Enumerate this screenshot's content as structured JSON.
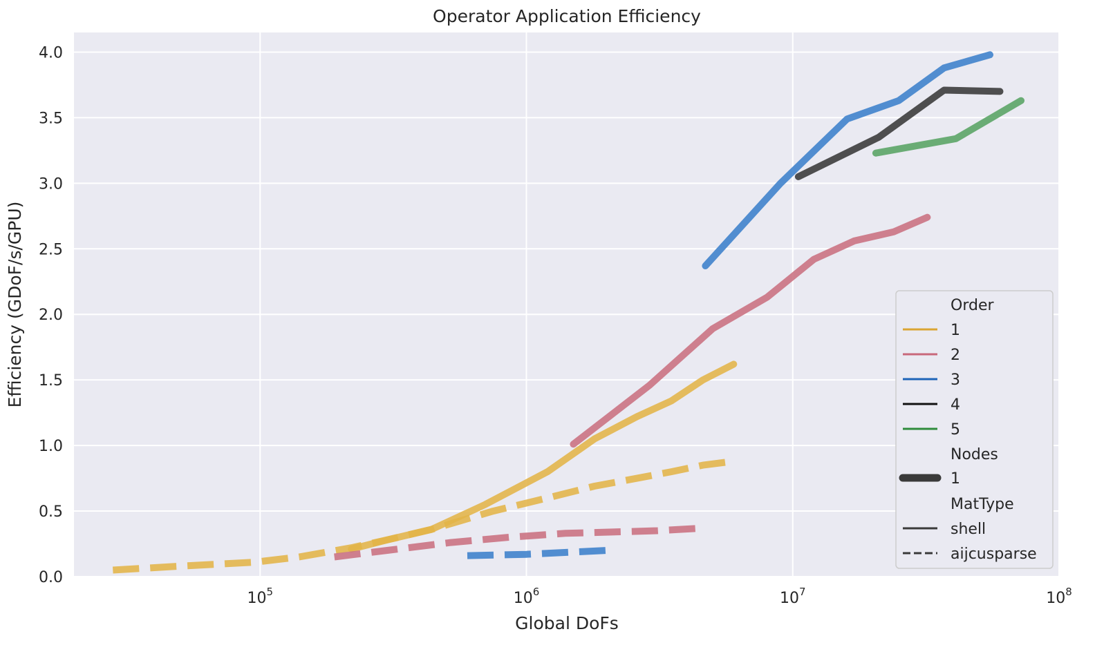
{
  "chart_data": {
    "type": "line",
    "title": "Operator Application Efficiency",
    "xlabel": "Global DoFs",
    "ylabel": "Efficiency (GDoF/s/GPU)",
    "xscale": "log",
    "xlim": [
      20000,
      100000000
    ],
    "ylim": [
      0,
      4.15
    ],
    "xticks": [
      {
        "value": 100000,
        "base": "10",
        "exp": "5"
      },
      {
        "value": 1000000,
        "base": "10",
        "exp": "6"
      },
      {
        "value": 10000000,
        "base": "10",
        "exp": "7"
      },
      {
        "value": 100000000,
        "base": "10",
        "exp": "8"
      }
    ],
    "yticks": [
      {
        "value": 0.0,
        "label": "0.0"
      },
      {
        "value": 0.5,
        "label": "0.5"
      },
      {
        "value": 1.0,
        "label": "1.0"
      },
      {
        "value": 1.5,
        "label": "1.5"
      },
      {
        "value": 2.0,
        "label": "2.0"
      },
      {
        "value": 2.5,
        "label": "2.5"
      },
      {
        "value": 3.0,
        "label": "3.0"
      },
      {
        "value": 3.5,
        "label": "3.5"
      },
      {
        "value": 4.0,
        "label": "4.0"
      }
    ],
    "grid": true,
    "background": "#eaeaf2",
    "legend_placement": "lower-right",
    "series": [
      {
        "order": "1",
        "mattype": "aijcusparse",
        "color": "#e3b448",
        "x": [
          28000,
          50000,
          95000,
          140000,
          220000,
          300000,
          440000,
          750000,
          1200000,
          1800000,
          2600000,
          3500000,
          4600000,
          6000000
        ],
        "y": [
          0.05,
          0.08,
          0.11,
          0.15,
          0.22,
          0.28,
          0.36,
          0.5,
          0.6,
          0.69,
          0.75,
          0.8,
          0.85,
          0.88
        ]
      },
      {
        "order": "1",
        "mattype": "shell",
        "color": "#e3b448",
        "x": [
          220000,
          300000,
          440000,
          700000,
          1200000,
          1800000,
          2600000,
          3500000,
          4600000,
          6000000
        ],
        "y": [
          0.21,
          0.28,
          0.36,
          0.55,
          0.8,
          1.05,
          1.22,
          1.34,
          1.5,
          1.62
        ]
      },
      {
        "order": "2",
        "mattype": "aijcusparse",
        "color": "#c97080",
        "x": [
          190000,
          300000,
          520000,
          860000,
          1400000,
          2100000,
          3100000,
          4600000
        ],
        "y": [
          0.15,
          0.2,
          0.26,
          0.3,
          0.33,
          0.34,
          0.35,
          0.37
        ]
      },
      {
        "order": "2",
        "mattype": "shell",
        "color": "#c97080",
        "x": [
          1500000,
          2900000,
          5000000,
          8000000,
          12000000,
          17000000,
          24000000,
          32000000
        ],
        "y": [
          1.01,
          1.46,
          1.89,
          2.13,
          2.42,
          2.56,
          2.63,
          2.74
        ]
      },
      {
        "order": "3",
        "mattype": "aijcusparse",
        "color": "#3b7fcb",
        "x": [
          600000,
          1000000,
          1600000,
          2000000
        ],
        "y": [
          0.16,
          0.17,
          0.19,
          0.2
        ]
      },
      {
        "order": "3",
        "mattype": "shell",
        "color": "#3b7fcb",
        "x": [
          4700000,
          9000000,
          16000000,
          25000000,
          37000000,
          55000000
        ],
        "y": [
          2.37,
          3.0,
          3.49,
          3.63,
          3.88,
          3.98
        ]
      },
      {
        "order": "4",
        "mattype": "shell",
        "color": "#383838",
        "x": [
          10500000,
          21000000,
          37000000,
          60000000
        ],
        "y": [
          3.05,
          3.35,
          3.71,
          3.7
        ]
      },
      {
        "order": "5",
        "mattype": "shell",
        "color": "#58a363",
        "x": [
          20500000,
          41000000,
          72000000
        ],
        "y": [
          3.23,
          3.34,
          3.63
        ]
      }
    ],
    "legend": {
      "order_title": "Order",
      "order_items": [
        {
          "label": "1",
          "color": "#dba533"
        },
        {
          "label": "2",
          "color": "#c8687a"
        },
        {
          "label": "3",
          "color": "#1e64b8"
        },
        {
          "label": "4",
          "color": "#111111"
        },
        {
          "label": "5",
          "color": "#2e8b3c"
        }
      ],
      "nodes_title": "Nodes",
      "nodes_items": [
        {
          "label": "1"
        }
      ],
      "mattype_title": "MatType",
      "mattype_items": [
        {
          "label": "shell",
          "style": "solid"
        },
        {
          "label": "aijcusparse",
          "style": "dashed"
        }
      ]
    }
  }
}
